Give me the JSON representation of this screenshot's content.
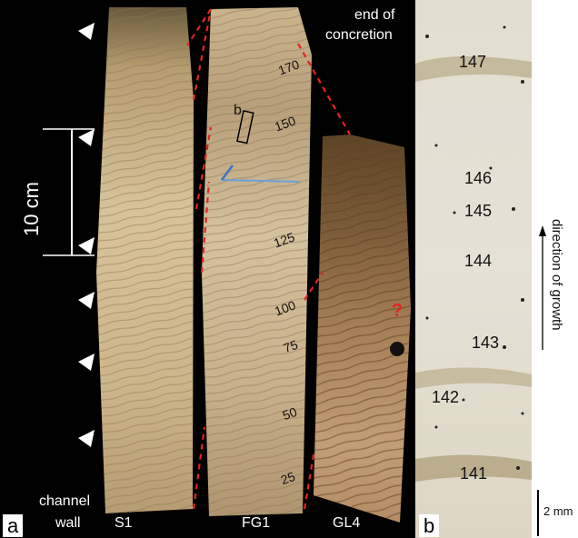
{
  "panel_a": {
    "letter": "a",
    "scale_label": "10 cm",
    "end_label_line1": "end of",
    "end_label_line2": "concretion",
    "channel_label_line1": "channel",
    "channel_label_line2": "wall",
    "core_labels": [
      "S1",
      "FG1",
      "GL4"
    ],
    "box_label": "b",
    "question_mark": "?",
    "depth_labels": [
      "170",
      "150",
      "125",
      "100",
      "75",
      "50",
      "25"
    ]
  },
  "panel_b": {
    "letter": "b",
    "scale_label": "2 mm",
    "growth_label": "direction of growth",
    "layer_labels": [
      "147",
      "146",
      "145",
      "144",
      "143",
      "142",
      "141"
    ]
  },
  "colors": {
    "background": "#000000",
    "dashed_line": "#e52421",
    "question_mark": "#e52421"
  }
}
